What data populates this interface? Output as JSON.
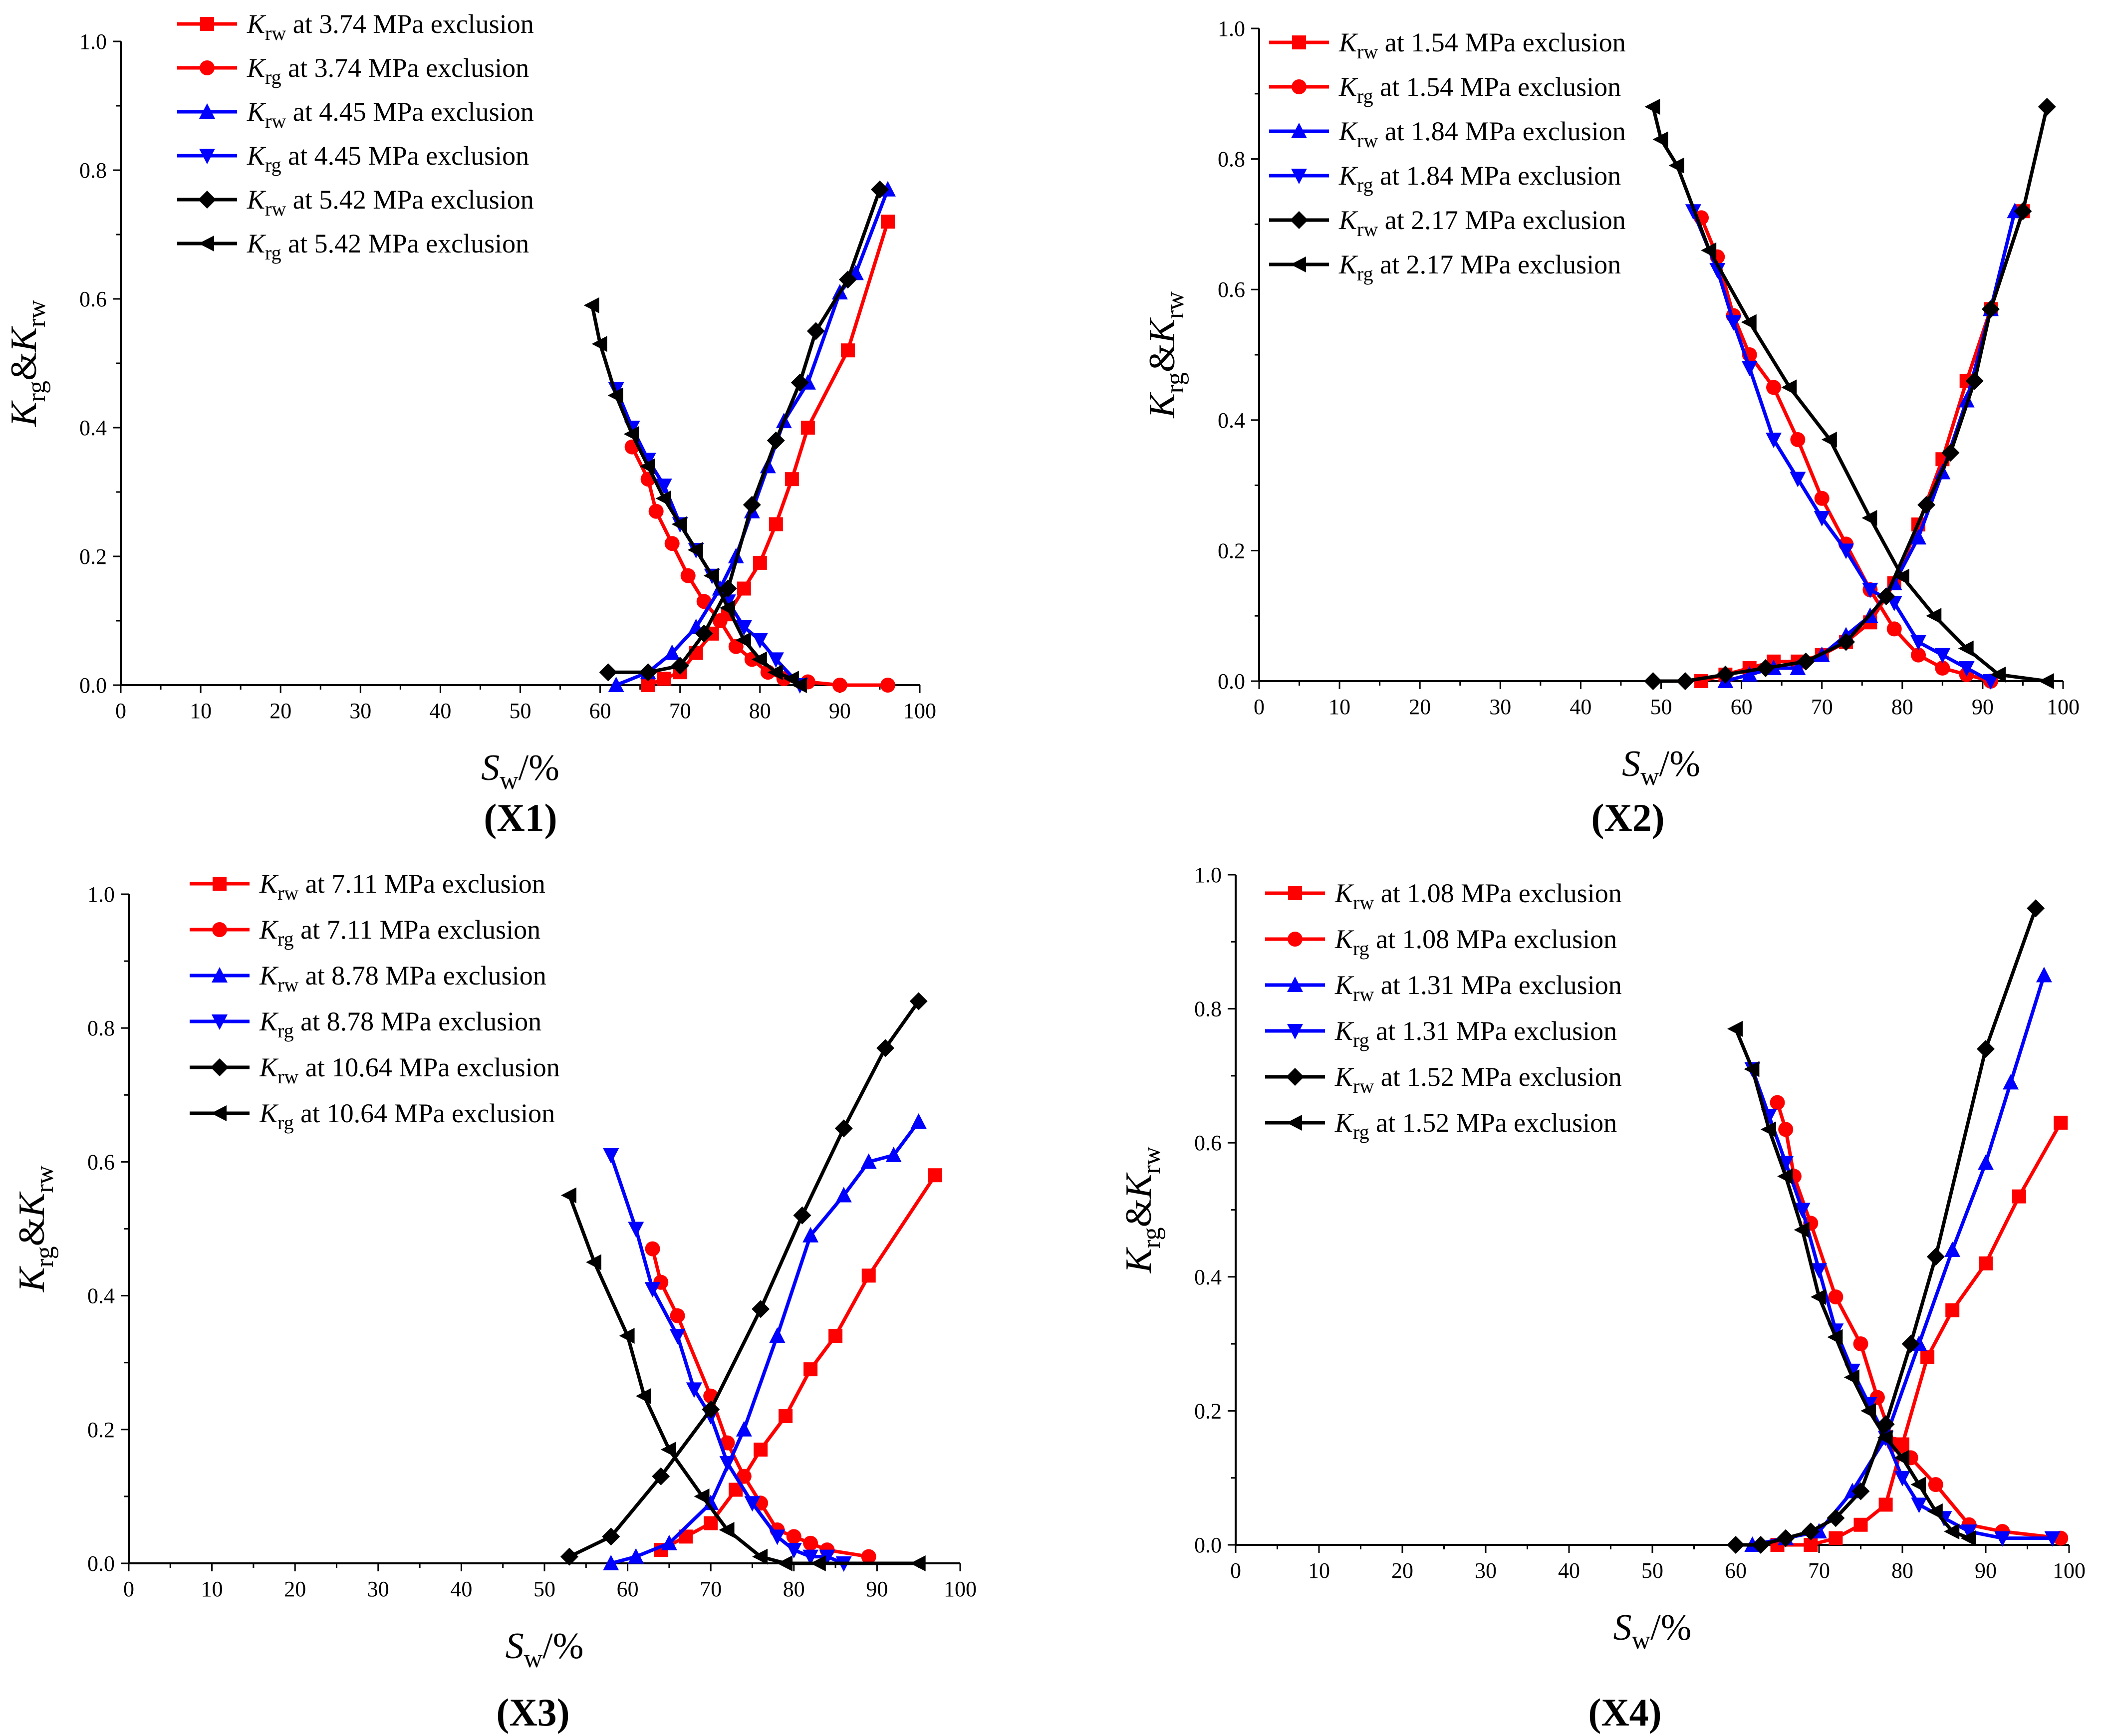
{
  "figure": "Relative permeability curves (K_rg & K_rw vs S_w) at different exclusion pressures",
  "chart_data": [
    {
      "type": "line",
      "panel_label": "X1",
      "xlabel": "Sw/%",
      "ylabel": "Krg&Krw",
      "xlim": [
        0,
        100
      ],
      "ylim": [
        0,
        1.0
      ],
      "xticks": [
        0,
        10,
        20,
        30,
        40,
        50,
        60,
        70,
        80,
        90,
        100
      ],
      "yticks": [
        0.0,
        0.2,
        0.4,
        0.6,
        0.8,
        1.0
      ],
      "series": [
        {
          "name": "Krw at 3.74 MPa exclusion",
          "sub": "rw",
          "rest": " at 3.74 MPa exclusion",
          "color": "#ff0000",
          "marker": "square",
          "x": [
            66,
            68,
            70,
            72,
            74,
            76,
            78,
            80,
            82,
            84,
            86,
            91,
            96
          ],
          "y": [
            0.0,
            0.01,
            0.02,
            0.05,
            0.08,
            0.11,
            0.15,
            0.19,
            0.25,
            0.32,
            0.4,
            0.52,
            0.72
          ]
        },
        {
          "name": "Krg at 3.74 MPa exclusion",
          "sub": "rg",
          "rest": " at 3.74 MPa exclusion",
          "color": "#ff0000",
          "marker": "circle",
          "x": [
            64,
            66,
            67,
            69,
            71,
            73,
            75,
            77,
            79,
            81,
            83,
            86,
            90,
            96
          ],
          "y": [
            0.37,
            0.32,
            0.27,
            0.22,
            0.17,
            0.13,
            0.1,
            0.06,
            0.04,
            0.02,
            0.01,
            0.005,
            0.0,
            0.0
          ]
        },
        {
          "name": "Krw at 4.45 MPa exclusion",
          "sub": "rw",
          "rest": " at 4.45 MPa exclusion",
          "color": "#0000ff",
          "marker": "triangle-up",
          "x": [
            62,
            66,
            69,
            72,
            75,
            77,
            79,
            81,
            83,
            86,
            90,
            92,
            96
          ],
          "y": [
            0.0,
            0.02,
            0.05,
            0.09,
            0.15,
            0.2,
            0.27,
            0.34,
            0.41,
            0.47,
            0.61,
            0.64,
            0.77
          ]
        },
        {
          "name": "Krg at 4.45 MPa exclusion",
          "sub": "rg",
          "rest": " at 4.45 MPa exclusion",
          "color": "#0000ff",
          "marker": "triangle-down",
          "x": [
            62,
            64,
            66,
            68,
            70,
            72,
            74,
            76,
            78,
            80,
            82,
            85
          ],
          "y": [
            0.46,
            0.4,
            0.35,
            0.31,
            0.25,
            0.21,
            0.17,
            0.13,
            0.09,
            0.07,
            0.04,
            0.0
          ]
        },
        {
          "name": "Krw at 5.42 MPa exclusion",
          "sub": "rw",
          "rest": " at 5.42 MPa exclusion",
          "color": "#000000",
          "marker": "diamond",
          "x": [
            61,
            66,
            70,
            73,
            76,
            79,
            82,
            85,
            87,
            91,
            95
          ],
          "y": [
            0.02,
            0.02,
            0.03,
            0.08,
            0.15,
            0.28,
            0.38,
            0.47,
            0.55,
            0.63,
            0.77
          ]
        },
        {
          "name": "Krg at 5.42 MPa exclusion",
          "sub": "rg",
          "rest": " at 5.42 MPa exclusion",
          "color": "#000000",
          "marker": "triangle-left",
          "x": [
            59,
            60,
            62,
            64,
            66,
            68,
            70,
            72,
            74,
            76,
            78,
            80,
            82,
            84,
            85
          ],
          "y": [
            0.59,
            0.53,
            0.45,
            0.39,
            0.34,
            0.29,
            0.25,
            0.21,
            0.17,
            0.12,
            0.07,
            0.04,
            0.02,
            0.01,
            0.0
          ]
        }
      ]
    },
    {
      "type": "line",
      "panel_label": "X2",
      "xlabel": "Sw/%",
      "ylabel": "Krg&Krw",
      "xlim": [
        0,
        100
      ],
      "ylim": [
        0,
        1.0
      ],
      "xticks": [
        0,
        10,
        20,
        30,
        40,
        50,
        60,
        70,
        80,
        90,
        100
      ],
      "yticks": [
        0.0,
        0.2,
        0.4,
        0.6,
        0.8,
        1.0
      ],
      "series": [
        {
          "name": "Krw at 1.54 MPa exclusion",
          "sub": "rw",
          "rest": " at 1.54 MPa exclusion",
          "color": "#ff0000",
          "marker": "square",
          "x": [
            55,
            58,
            61,
            64,
            67,
            70,
            73,
            76,
            79,
            82,
            85,
            88,
            91,
            95
          ],
          "y": [
            0.0,
            0.01,
            0.02,
            0.03,
            0.03,
            0.04,
            0.06,
            0.09,
            0.15,
            0.24,
            0.34,
            0.46,
            0.57,
            0.72
          ]
        },
        {
          "name": "Krg at 1.54 MPa exclusion",
          "sub": "rg",
          "rest": " at 1.54 MPa exclusion",
          "color": "#ff0000",
          "marker": "circle",
          "x": [
            55,
            57,
            59,
            61,
            64,
            67,
            70,
            73,
            76,
            79,
            82,
            85,
            88,
            91
          ],
          "y": [
            0.71,
            0.65,
            0.56,
            0.5,
            0.45,
            0.37,
            0.28,
            0.21,
            0.14,
            0.08,
            0.04,
            0.02,
            0.01,
            0.0
          ]
        },
        {
          "name": "Krw at 1.84 MPa exclusion",
          "sub": "rw",
          "rest": " at 1.84 MPa exclusion",
          "color": "#0000ff",
          "marker": "triangle-up",
          "x": [
            58,
            61,
            64,
            67,
            70,
            73,
            76,
            79,
            82,
            85,
            88,
            91,
            94
          ],
          "y": [
            0.0,
            0.01,
            0.02,
            0.02,
            0.04,
            0.07,
            0.1,
            0.15,
            0.22,
            0.32,
            0.43,
            0.57,
            0.72
          ]
        },
        {
          "name": "Krg at 1.84 MPa exclusion",
          "sub": "rg",
          "rest": " at 1.84 MPa exclusion",
          "color": "#0000ff",
          "marker": "triangle-down",
          "x": [
            54,
            57,
            59,
            61,
            64,
            67,
            70,
            73,
            76,
            79,
            82,
            85,
            88,
            91
          ],
          "y": [
            0.72,
            0.63,
            0.55,
            0.48,
            0.37,
            0.31,
            0.25,
            0.2,
            0.14,
            0.12,
            0.06,
            0.04,
            0.02,
            0.0
          ]
        },
        {
          "name": "Krw at 2.17 MPa exclusion",
          "sub": "rw",
          "rest": " at 2.17 MPa exclusion",
          "color": "#000000",
          "marker": "diamond",
          "x": [
            49,
            53,
            58,
            63,
            68,
            73,
            78,
            83,
            86,
            89,
            91,
            95,
            98
          ],
          "y": [
            0.0,
            0.0,
            0.01,
            0.02,
            0.03,
            0.06,
            0.13,
            0.27,
            0.35,
            0.46,
            0.57,
            0.72,
            0.88
          ]
        },
        {
          "name": "Krg at 2.17 MPa exclusion",
          "sub": "rg",
          "rest": " at 2.17 MPa exclusion",
          "color": "#000000",
          "marker": "triangle-left",
          "x": [
            49,
            50,
            52,
            56,
            61,
            66,
            71,
            76,
            80,
            84,
            88,
            92,
            98
          ],
          "y": [
            0.88,
            0.83,
            0.79,
            0.66,
            0.55,
            0.45,
            0.37,
            0.25,
            0.16,
            0.1,
            0.05,
            0.01,
            0.0
          ]
        }
      ]
    },
    {
      "type": "line",
      "panel_label": "X3",
      "xlabel": "Sw/%",
      "ylabel": "Krg&Krw",
      "xlim": [
        0,
        100
      ],
      "ylim": [
        0,
        1.0
      ],
      "xticks": [
        0,
        10,
        20,
        30,
        40,
        50,
        60,
        70,
        80,
        90,
        100
      ],
      "yticks": [
        0.0,
        0.2,
        0.4,
        0.6,
        0.8,
        1.0
      ],
      "series": [
        {
          "name": "Krw at 7.11 MPa exclusion",
          "sub": "rw",
          "rest": " at 7.11 MPa exclusion",
          "color": "#ff0000",
          "marker": "square",
          "x": [
            64,
            67,
            70,
            73,
            76,
            79,
            82,
            85,
            89,
            97
          ],
          "y": [
            0.02,
            0.04,
            0.06,
            0.11,
            0.17,
            0.22,
            0.29,
            0.34,
            0.43,
            0.58
          ]
        },
        {
          "name": "Krg at 7.11 MPa exclusion",
          "sub": "rg",
          "rest": " at 7.11 MPa exclusion",
          "color": "#ff0000",
          "marker": "circle",
          "x": [
            63,
            64,
            66,
            70,
            72,
            74,
            76,
            78,
            80,
            82,
            84,
            89
          ],
          "y": [
            0.47,
            0.42,
            0.37,
            0.25,
            0.18,
            0.13,
            0.09,
            0.05,
            0.04,
            0.03,
            0.02,
            0.01
          ]
        },
        {
          "name": "Krw at 8.78 MPa exclusion",
          "sub": "rw",
          "rest": " at 8.78 MPa exclusion",
          "color": "#0000ff",
          "marker": "triangle-up",
          "x": [
            58,
            61,
            65,
            70,
            74,
            78,
            82,
            86,
            89,
            92,
            95
          ],
          "y": [
            0.0,
            0.01,
            0.03,
            0.09,
            0.2,
            0.34,
            0.49,
            0.55,
            0.6,
            0.61,
            0.66
          ]
        },
        {
          "name": "Krg at 8.78 MPa exclusion",
          "sub": "rg",
          "rest": " at 8.78 MPa exclusion",
          "color": "#0000ff",
          "marker": "triangle-down",
          "x": [
            58,
            61,
            63,
            66,
            68,
            70,
            72,
            75,
            78,
            80,
            82,
            84,
            86
          ],
          "y": [
            0.61,
            0.5,
            0.41,
            0.34,
            0.26,
            0.22,
            0.15,
            0.09,
            0.04,
            0.02,
            0.01,
            0.01,
            0.0
          ]
        },
        {
          "name": "Krw at 10.64 MPa exclusion",
          "sub": "rw",
          "rest": " at 10.64 MPa exclusion",
          "color": "#000000",
          "marker": "diamond",
          "x": [
            53,
            58,
            64,
            70,
            76,
            81,
            86,
            91,
            95
          ],
          "y": [
            0.01,
            0.04,
            0.13,
            0.23,
            0.38,
            0.52,
            0.65,
            0.77,
            0.84
          ]
        },
        {
          "name": "Krg at 10.64 MPa exclusion",
          "sub": "rg",
          "rest": " at 10.64 MPa exclusion",
          "color": "#000000",
          "marker": "triangle-left",
          "x": [
            53,
            56,
            60,
            62,
            65,
            69,
            72,
            76,
            79,
            83,
            95
          ],
          "y": [
            0.55,
            0.45,
            0.34,
            0.25,
            0.17,
            0.1,
            0.05,
            0.01,
            0.0,
            0.0,
            0.0
          ]
        }
      ]
    },
    {
      "type": "line",
      "panel_label": "X4",
      "xlabel": "Sw/%",
      "ylabel": "Krg&Krw",
      "xlim": [
        0,
        100
      ],
      "ylim": [
        0,
        1.0
      ],
      "xticks": [
        0,
        10,
        20,
        30,
        40,
        50,
        60,
        70,
        80,
        90,
        100
      ],
      "yticks": [
        0.0,
        0.2,
        0.4,
        0.6,
        0.8,
        1.0
      ],
      "series": [
        {
          "name": "Krw at 1.08 MPa exclusion",
          "sub": "rw",
          "rest": " at 1.08 MPa exclusion",
          "color": "#ff0000",
          "marker": "square",
          "x": [
            65,
            69,
            72,
            75,
            78,
            80,
            83,
            86,
            90,
            94,
            99
          ],
          "y": [
            0.0,
            0.0,
            0.01,
            0.03,
            0.06,
            0.15,
            0.28,
            0.35,
            0.42,
            0.52,
            0.63
          ]
        },
        {
          "name": "Krg at 1.08 MPa exclusion",
          "sub": "rg",
          "rest": " at 1.08 MPa exclusion",
          "color": "#ff0000",
          "marker": "circle",
          "x": [
            65,
            66,
            67,
            69,
            72,
            75,
            77,
            79,
            81,
            84,
            88,
            92,
            99
          ],
          "y": [
            0.66,
            0.62,
            0.55,
            0.48,
            0.37,
            0.3,
            0.22,
            0.15,
            0.13,
            0.09,
            0.03,
            0.02,
            0.01
          ]
        },
        {
          "name": "Krw at 1.31 MPa exclusion",
          "sub": "rw",
          "rest": " at 1.31 MPa exclusion",
          "color": "#0000ff",
          "marker": "triangle-up",
          "x": [
            62,
            66,
            70,
            74,
            78,
            82,
            86,
            90,
            93,
            97
          ],
          "y": [
            0.0,
            0.01,
            0.02,
            0.08,
            0.16,
            0.3,
            0.44,
            0.57,
            0.69,
            0.85
          ]
        },
        {
          "name": "Krg at 1.31 MPa exclusion",
          "sub": "rg",
          "rest": " at 1.31 MPa exclusion",
          "color": "#0000ff",
          "marker": "triangle-down",
          "x": [
            62,
            64,
            66,
            68,
            70,
            72,
            74,
            76,
            78,
            80,
            82,
            85,
            88,
            92,
            98
          ],
          "y": [
            0.71,
            0.64,
            0.57,
            0.5,
            0.41,
            0.32,
            0.26,
            0.21,
            0.16,
            0.1,
            0.06,
            0.04,
            0.02,
            0.01,
            0.01
          ]
        },
        {
          "name": "Krw at 1.52 MPa exclusion",
          "sub": "rw",
          "rest": " at 1.52 MPa exclusion",
          "color": "#000000",
          "marker": "diamond",
          "x": [
            60,
            63,
            66,
            69,
            72,
            75,
            78,
            81,
            84,
            90,
            96
          ],
          "y": [
            0.0,
            0.0,
            0.01,
            0.02,
            0.04,
            0.08,
            0.18,
            0.3,
            0.43,
            0.74,
            0.95
          ]
        },
        {
          "name": "Krg at 1.52 MPa exclusion",
          "sub": "rg",
          "rest": " at 1.52 MPa exclusion",
          "color": "#000000",
          "marker": "triangle-left",
          "x": [
            60,
            62,
            64,
            66,
            68,
            70,
            72,
            74,
            76,
            78,
            80,
            82,
            84,
            86,
            88
          ],
          "y": [
            0.77,
            0.71,
            0.62,
            0.55,
            0.47,
            0.37,
            0.31,
            0.25,
            0.2,
            0.16,
            0.13,
            0.09,
            0.05,
            0.02,
            0.01
          ]
        }
      ]
    }
  ]
}
